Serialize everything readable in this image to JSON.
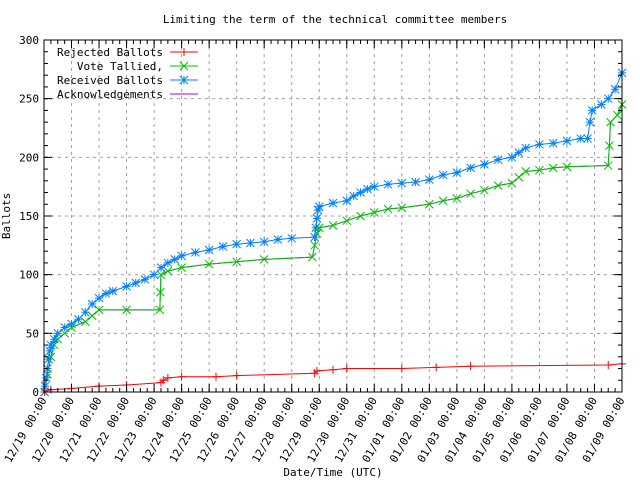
{
  "chart_data": {
    "type": "line",
    "title": "Limiting the term of the technical committee members",
    "xlabel": "Date/Time (UTC)",
    "ylabel": "Ballots",
    "ylim": [
      0,
      300
    ],
    "yticks": [
      0,
      50,
      100,
      150,
      200,
      250,
      300
    ],
    "xlim": [
      "12/19 00:00",
      "01/09 00:00"
    ],
    "xticks": [
      "12/19",
      "12/20",
      "12/21",
      "12/22",
      "12/23",
      "12/24",
      "12/25",
      "12/26",
      "12/27",
      "12/28",
      "12/29",
      "12/30",
      "12/31",
      "01/01",
      "01/02",
      "01/03",
      "01/04",
      "01/05",
      "01/06",
      "01/07",
      "01/08",
      "01/09"
    ],
    "xtick_time": "00:00",
    "grid": true,
    "legend_position": "top-left",
    "series": [
      {
        "name": "Rejected Ballots",
        "color": "#ff0000",
        "marker": "plus",
        "points": [
          [
            "12/19 00:30",
            0
          ],
          [
            "12/19 06:00",
            2
          ],
          [
            "12/20 00:00",
            3
          ],
          [
            "12/21 00:00",
            5
          ],
          [
            "12/22 00:00",
            6
          ],
          [
            "12/23 06:00",
            8
          ],
          [
            "12/23 08:00",
            10
          ],
          [
            "12/23 12:00",
            12
          ],
          [
            "12/24 00:00",
            13
          ],
          [
            "12/25 06:00",
            13
          ],
          [
            "12/26 00:00",
            14
          ],
          [
            "12/28 20:00",
            16
          ],
          [
            "12/28 22:00",
            18
          ],
          [
            "12/29 12:00",
            19
          ],
          [
            "12/30 00:00",
            20
          ],
          [
            "01/01 00:00",
            20
          ],
          [
            "01/02 06:00",
            21
          ],
          [
            "01/03 12:00",
            22
          ],
          [
            "01/08 12:00",
            23
          ],
          [
            "01/09 00:00",
            24
          ]
        ]
      },
      {
        "name": "Vote Tallied,",
        "color": "#00c000",
        "marker": "cross",
        "points": [
          [
            "12/19 00:30",
            0
          ],
          [
            "12/19 03:00",
            15
          ],
          [
            "12/19 06:00",
            30
          ],
          [
            "12/19 09:00",
            40
          ],
          [
            "12/19 12:00",
            45
          ],
          [
            "12/19 18:00",
            50
          ],
          [
            "12/20 00:00",
            55
          ],
          [
            "12/20 12:00",
            60
          ],
          [
            "12/20 18:00",
            65
          ],
          [
            "12/21 00:00",
            70
          ],
          [
            "12/22 00:00",
            70
          ],
          [
            "12/23 05:00",
            70
          ],
          [
            "12/23 05:30",
            85
          ],
          [
            "12/23 06:00",
            100
          ],
          [
            "12/23 12:00",
            103
          ],
          [
            "12/24 00:00",
            106
          ],
          [
            "12/25 00:00",
            109
          ],
          [
            "12/26 00:00",
            111
          ],
          [
            "12/27 00:00",
            113
          ],
          [
            "12/28 18:00",
            115
          ],
          [
            "12/28 20:00",
            125
          ],
          [
            "12/28 22:00",
            135
          ],
          [
            "12/29 00:00",
            140
          ],
          [
            "12/29 12:00",
            142
          ],
          [
            "12/30 00:00",
            146
          ],
          [
            "12/30 12:00",
            150
          ],
          [
            "12/31 00:00",
            153
          ],
          [
            "12/31 12:00",
            156
          ],
          [
            "01/01 00:00",
            157
          ],
          [
            "01/02 00:00",
            160
          ],
          [
            "01/02 12:00",
            163
          ],
          [
            "01/03 00:00",
            165
          ],
          [
            "01/03 12:00",
            169
          ],
          [
            "01/04 00:00",
            172
          ],
          [
            "01/04 12:00",
            176
          ],
          [
            "01/05 00:00",
            178
          ],
          [
            "01/05 06:00",
            183
          ],
          [
            "01/05 12:00",
            188
          ],
          [
            "01/06 00:00",
            189
          ],
          [
            "01/06 12:00",
            191
          ],
          [
            "01/07 00:00",
            192
          ],
          [
            "01/08 12:00",
            193
          ],
          [
            "01/08 13:00",
            210
          ],
          [
            "01/08 14:00",
            230
          ],
          [
            "01/08 20:00",
            236
          ],
          [
            "01/09 00:00",
            245
          ]
        ]
      },
      {
        "name": "Received Ballots",
        "color": "#0080ff",
        "marker": "star",
        "points": [
          [
            "12/19 00:30",
            0
          ],
          [
            "12/19 01:00",
            5
          ],
          [
            "12/19 02:00",
            12
          ],
          [
            "12/19 03:00",
            20
          ],
          [
            "12/19 04:00",
            28
          ],
          [
            "12/19 05:00",
            35
          ],
          [
            "12/19 06:00",
            40
          ],
          [
            "12/19 09:00",
            45
          ],
          [
            "12/19 12:00",
            50
          ],
          [
            "12/19 18:00",
            55
          ],
          [
            "12/20 00:00",
            58
          ],
          [
            "12/20 06:00",
            62
          ],
          [
            "12/20 12:00",
            68
          ],
          [
            "12/20 18:00",
            75
          ],
          [
            "12/21 00:00",
            80
          ],
          [
            "12/21 06:00",
            84
          ],
          [
            "12/21 12:00",
            86
          ],
          [
            "12/22 00:00",
            90
          ],
          [
            "12/22 08:00",
            93
          ],
          [
            "12/22 16:00",
            96
          ],
          [
            "12/23 00:00",
            100
          ],
          [
            "12/23 06:00",
            106
          ],
          [
            "12/23 12:00",
            110
          ],
          [
            "12/23 18:00",
            113
          ],
          [
            "12/24 00:00",
            116
          ],
          [
            "12/24 12:00",
            119
          ],
          [
            "12/25 00:00",
            121
          ],
          [
            "12/25 12:00",
            124
          ],
          [
            "12/26 00:00",
            126
          ],
          [
            "12/26 12:00",
            127
          ],
          [
            "12/27 00:00",
            128
          ],
          [
            "12/27 12:00",
            130
          ],
          [
            "12/28 00:00",
            131
          ],
          [
            "12/28 20:00",
            132
          ],
          [
            "12/28 21:00",
            140
          ],
          [
            "12/28 22:00",
            148
          ],
          [
            "12/28 23:00",
            155
          ],
          [
            "12/29 00:00",
            158
          ],
          [
            "12/29 12:00",
            161
          ],
          [
            "12/30 00:00",
            163
          ],
          [
            "12/30 06:00",
            167
          ],
          [
            "12/30 12:00",
            170
          ],
          [
            "12/30 18:00",
            173
          ],
          [
            "12/31 00:00",
            175
          ],
          [
            "12/31 12:00",
            177
          ],
          [
            "01/01 00:00",
            178
          ],
          [
            "01/01 12:00",
            179
          ],
          [
            "01/02 00:00",
            181
          ],
          [
            "01/02 12:00",
            185
          ],
          [
            "01/03 00:00",
            187
          ],
          [
            "01/03 12:00",
            191
          ],
          [
            "01/04 00:00",
            194
          ],
          [
            "01/04 12:00",
            198
          ],
          [
            "01/05 00:00",
            200
          ],
          [
            "01/05 06:00",
            204
          ],
          [
            "01/05 12:00",
            208
          ],
          [
            "01/06 00:00",
            211
          ],
          [
            "01/06 12:00",
            212
          ],
          [
            "01/07 00:00",
            214
          ],
          [
            "01/07 12:00",
            216
          ],
          [
            "01/07 18:00",
            216
          ],
          [
            "01/07 20:00",
            230
          ],
          [
            "01/07 22:00",
            240
          ],
          [
            "01/08 06:00",
            245
          ],
          [
            "01/08 12:00",
            250
          ],
          [
            "01/08 18:00",
            258
          ],
          [
            "01/09 00:00",
            272
          ]
        ]
      },
      {
        "name": "Acknowledgements",
        "color": "#a000f0",
        "marker": "none",
        "same_as": "Vote Tallied,"
      }
    ]
  }
}
